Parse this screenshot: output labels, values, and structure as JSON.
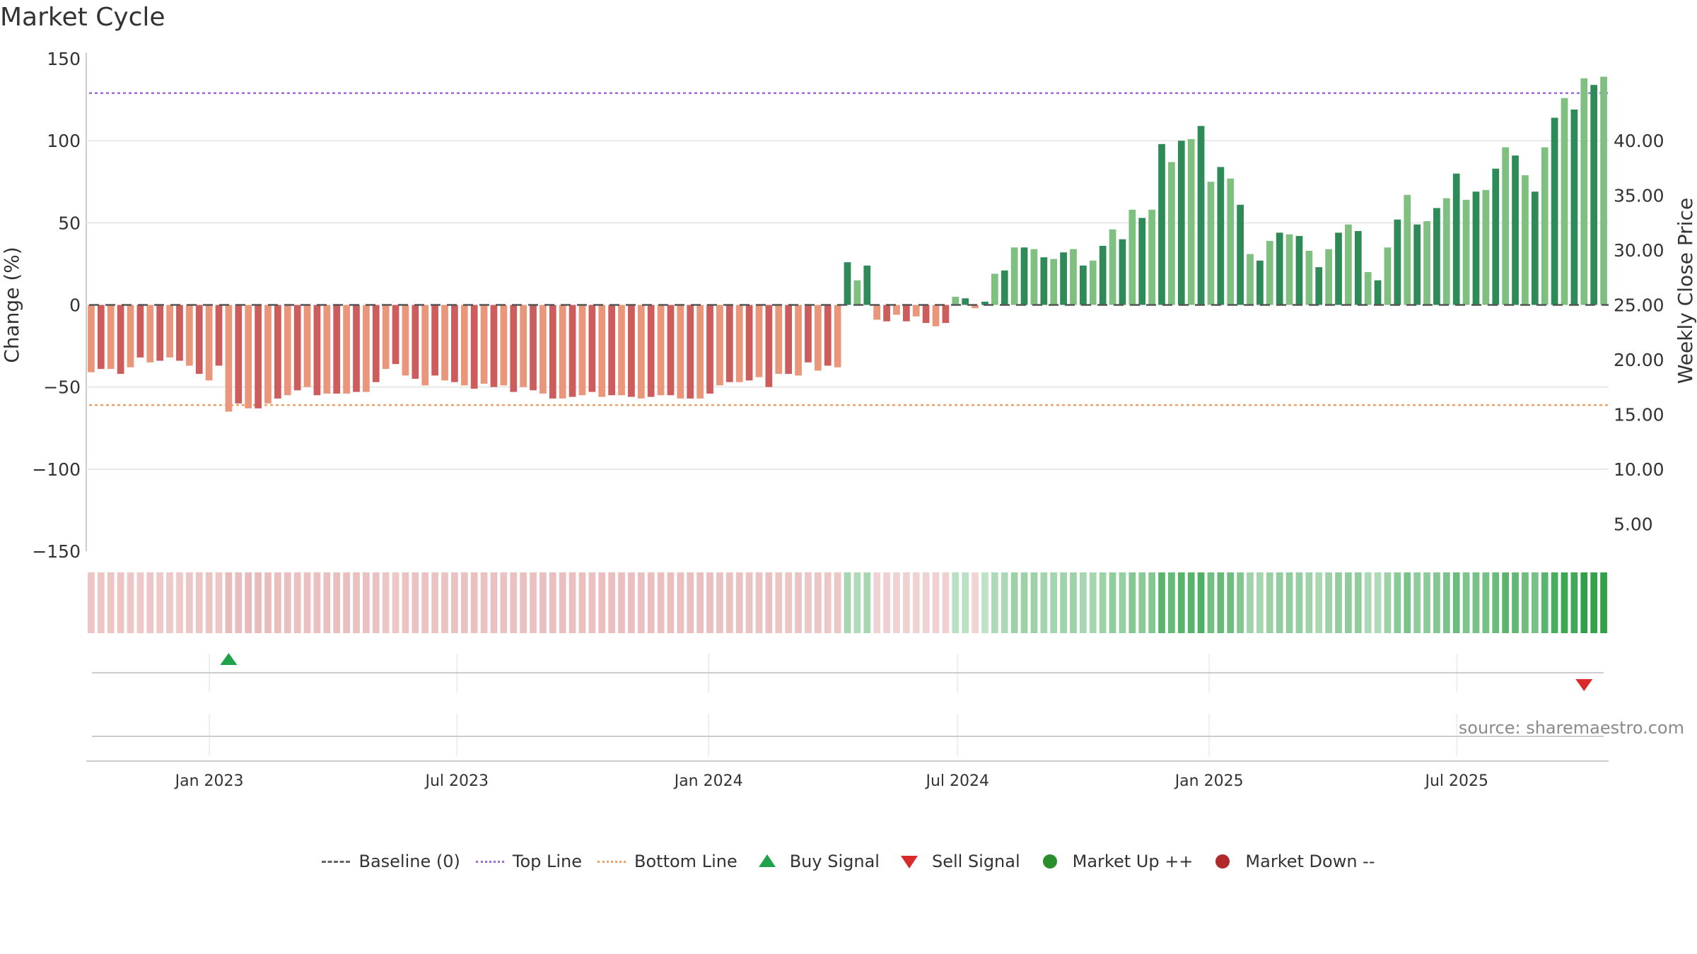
{
  "title": "Market Cycle",
  "source_text": "source: sharemaestro.com",
  "colors": {
    "neg_dark": "#cd5c5c",
    "neg_light": "#e9967a",
    "pos_dark": "#2e8b57",
    "pos_light": "#7fbf7f",
    "top_line": "#9c6bd8",
    "bottom_line": "#f0a060",
    "buy": "#1fa34a",
    "sell": "#d92b2b",
    "market_up": "#2a8f2a",
    "market_down": "#b02a2a"
  },
  "legend": [
    {
      "label": "Baseline (0)",
      "icon": "dashed-line-icon"
    },
    {
      "label": "Top Line",
      "icon": "dotted-purple-line-icon"
    },
    {
      "label": "Bottom Line",
      "icon": "dotted-orange-line-icon"
    },
    {
      "label": "Buy Signal",
      "icon": "triangle-up-icon"
    },
    {
      "label": "Sell Signal",
      "icon": "triangle-down-icon"
    },
    {
      "label": "Market Up ++",
      "icon": "green-circle-icon"
    },
    {
      "label": "Market Down --",
      "icon": "red-circle-icon"
    }
  ],
  "chart_data": {
    "type": "bar",
    "title": "Market Cycle",
    "ylabel": "Change (%)",
    "y2label": "Weekly Close Price",
    "ylim": [
      -150,
      150
    ],
    "yticks": [
      "150",
      "100",
      "50",
      "0",
      "−50",
      "−100",
      "−150"
    ],
    "y2lim": [
      0,
      45
    ],
    "y2ticks": [
      "40.00",
      "35.00",
      "30.00",
      "25.00",
      "20.00",
      "15.00",
      "10.00",
      "5.00"
    ],
    "top_line": 129,
    "bottom_line": -61,
    "x_start": "2022-10-03",
    "x_end": "2025-10-20",
    "x_ticks": [
      {
        "label": "Jan 2023",
        "date": "2023-01-01"
      },
      {
        "label": "Jul 2023",
        "date": "2023-07-01"
      },
      {
        "label": "Jan 2024",
        "date": "2024-01-01"
      },
      {
        "label": "Jul 2024",
        "date": "2024-07-01"
      },
      {
        "label": "Jan 2025",
        "date": "2025-01-01"
      },
      {
        "label": "Jul 2025",
        "date": "2025-07-01"
      }
    ],
    "values": [
      -41,
      -39,
      -39,
      -42,
      -38,
      -32,
      -35,
      -34,
      -32,
      -34,
      -37,
      -42,
      -46,
      -37,
      -65,
      -60,
      -63,
      -63,
      -60,
      -57,
      -55,
      -52,
      -50,
      -55,
      -54,
      -54,
      -54,
      -53,
      -53,
      -47,
      -39,
      -36,
      -43,
      -45,
      -49,
      -43,
      -46,
      -47,
      -49,
      -51,
      -48,
      -50,
      -49,
      -53,
      -50,
      -52,
      -54,
      -57,
      -57,
      -56,
      -55,
      -53,
      -56,
      -55,
      -55,
      -56,
      -57,
      -56,
      -55,
      -55,
      -57,
      -57,
      -57,
      -54,
      -49,
      -47,
      -47,
      -46,
      -44,
      -50,
      -42,
      -42,
      -43,
      -35,
      -40,
      -37,
      -38,
      26,
      15,
      24,
      -9,
      -10,
      -6,
      -10,
      -7,
      -11,
      -13,
      -11,
      5,
      4,
      -2,
      2,
      19,
      21,
      35,
      35,
      34,
      29,
      28,
      32,
      34,
      24,
      27,
      36,
      46,
      40,
      58,
      53,
      58,
      98,
      87,
      100,
      101,
      109,
      75,
      84,
      77,
      61,
      31,
      27,
      39,
      44,
      43,
      42,
      33,
      23,
      34,
      44,
      49,
      45,
      20,
      15,
      35,
      52,
      67,
      49,
      51,
      59,
      65,
      80,
      64,
      69,
      70,
      83,
      96,
      91,
      79,
      69,
      96,
      114,
      126,
      119,
      138,
      134,
      139
    ],
    "shade": [
      "l",
      "d",
      "l",
      "d",
      "l",
      "d",
      "l",
      "d",
      "l",
      "d",
      "l",
      "d",
      "l",
      "d",
      "l",
      "d",
      "l",
      "d",
      "l",
      "d",
      "l",
      "d",
      "l",
      "d",
      "l",
      "d",
      "l",
      "d",
      "l",
      "d",
      "l",
      "d",
      "l",
      "d",
      "l",
      "d",
      "l",
      "d",
      "l",
      "d",
      "l",
      "d",
      "l",
      "d",
      "l",
      "d",
      "l",
      "d",
      "l",
      "d",
      "l",
      "d",
      "l",
      "d",
      "l",
      "d",
      "l",
      "d",
      "l",
      "d",
      "l",
      "d",
      "l",
      "d",
      "l",
      "d",
      "l",
      "d",
      "l",
      "d",
      "l",
      "d",
      "l",
      "d",
      "l",
      "d",
      "l",
      "d",
      "l",
      "d",
      "l",
      "d",
      "l",
      "d",
      "l",
      "d",
      "l",
      "d",
      "l",
      "d",
      "l",
      "d",
      "l",
      "d",
      "l",
      "d",
      "l",
      "d",
      "l",
      "d",
      "l",
      "d",
      "l",
      "d",
      "l",
      "d",
      "l",
      "d",
      "l",
      "d",
      "l",
      "d",
      "l",
      "d",
      "l",
      "d",
      "l",
      "d",
      "l",
      "d",
      "l",
      "d",
      "l",
      "d",
      "l",
      "d",
      "l",
      "d",
      "l",
      "d",
      "l",
      "d",
      "l",
      "d",
      "l",
      "d",
      "l",
      "d",
      "l",
      "d",
      "l",
      "d",
      "l",
      "d",
      "l",
      "d",
      "l",
      "d",
      "l",
      "d",
      "l",
      "d",
      "l",
      "d",
      "l",
      "d"
    ],
    "buy_signals": [
      14
    ],
    "sell_signals": [
      152
    ],
    "legend_position": "bottom-center"
  }
}
